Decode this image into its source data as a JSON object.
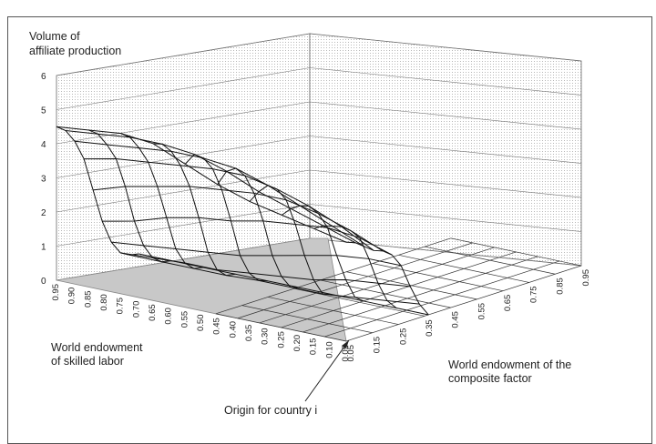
{
  "chart_data": {
    "type": "surface-3d",
    "title": "",
    "zlabel_line1": "Volume of",
    "zlabel_line2": "affiliate production",
    "xlabel_line1": "World endowment",
    "xlabel_line2": "of skilled labor",
    "ylabel_line1": "World endowment of the",
    "ylabel_line2": "composite factor",
    "annotation": "Origin for country i",
    "z_ticks": [
      "0",
      "1",
      "2",
      "3",
      "4",
      "5",
      "6"
    ],
    "zlim": [
      0,
      6
    ],
    "x_ticks": [
      "0.95",
      "0.90",
      "0.85",
      "0.80",
      "0.75",
      "0.70",
      "0.65",
      "0.60",
      "0.55",
      "0.50",
      "0.45",
      "0.40",
      "0.35",
      "0.30",
      "0.25",
      "0.20",
      "0.15",
      "0.10",
      "0.05"
    ],
    "y_ticks": [
      "0.05",
      "0.15",
      "0.25",
      "0.35",
      "0.45",
      "0.55",
      "0.65",
      "0.75",
      "0.85",
      "0.95"
    ],
    "grid": true,
    "floor_shading": "gray",
    "surface_profile": {
      "x_values": [
        0.95,
        0.85,
        0.75,
        0.65,
        0.55,
        0.45,
        0.35,
        0.25,
        0.15,
        0.05
      ],
      "y_values": [
        0.05,
        0.15,
        0.25,
        0.35,
        0.45,
        0.55,
        0.65,
        0.75,
        0.85,
        0.95
      ],
      "z_values": [
        [
          4.5,
          4.3,
          3.9,
          3.3,
          2.3,
          1.3,
          0.6,
          0.2,
          0.05,
          0
        ],
        [
          4.6,
          4.4,
          4.0,
          3.5,
          2.6,
          1.5,
          0.7,
          0.25,
          0.05,
          0
        ],
        [
          4.7,
          4.5,
          4.1,
          3.6,
          2.8,
          1.8,
          0.8,
          0.3,
          0.05,
          0
        ],
        [
          4.6,
          4.5,
          4.2,
          3.7,
          3.0,
          2.0,
          0.9,
          0.3,
          0.05,
          0
        ],
        [
          4.2,
          4.4,
          4.2,
          3.8,
          3.1,
          2.1,
          1.0,
          0.4,
          0.1,
          0
        ],
        [
          3.8,
          4.1,
          4.1,
          3.8,
          3.2,
          2.3,
          1.2,
          0.5,
          0.1,
          0
        ],
        [
          3.5,
          3.7,
          3.8,
          3.6,
          3.2,
          2.4,
          1.4,
          0.6,
          0.1,
          0
        ],
        [
          3.3,
          3.4,
          3.4,
          3.3,
          3.0,
          2.5,
          1.6,
          0.8,
          0.2,
          0
        ],
        [
          3.1,
          3.1,
          3.0,
          2.9,
          2.7,
          2.4,
          1.7,
          0.9,
          0.3,
          0
        ],
        [
          2.9,
          2.8,
          2.6,
          2.4,
          2.3,
          2.1,
          1.7,
          1.0,
          0.4,
          0
        ]
      ]
    }
  }
}
